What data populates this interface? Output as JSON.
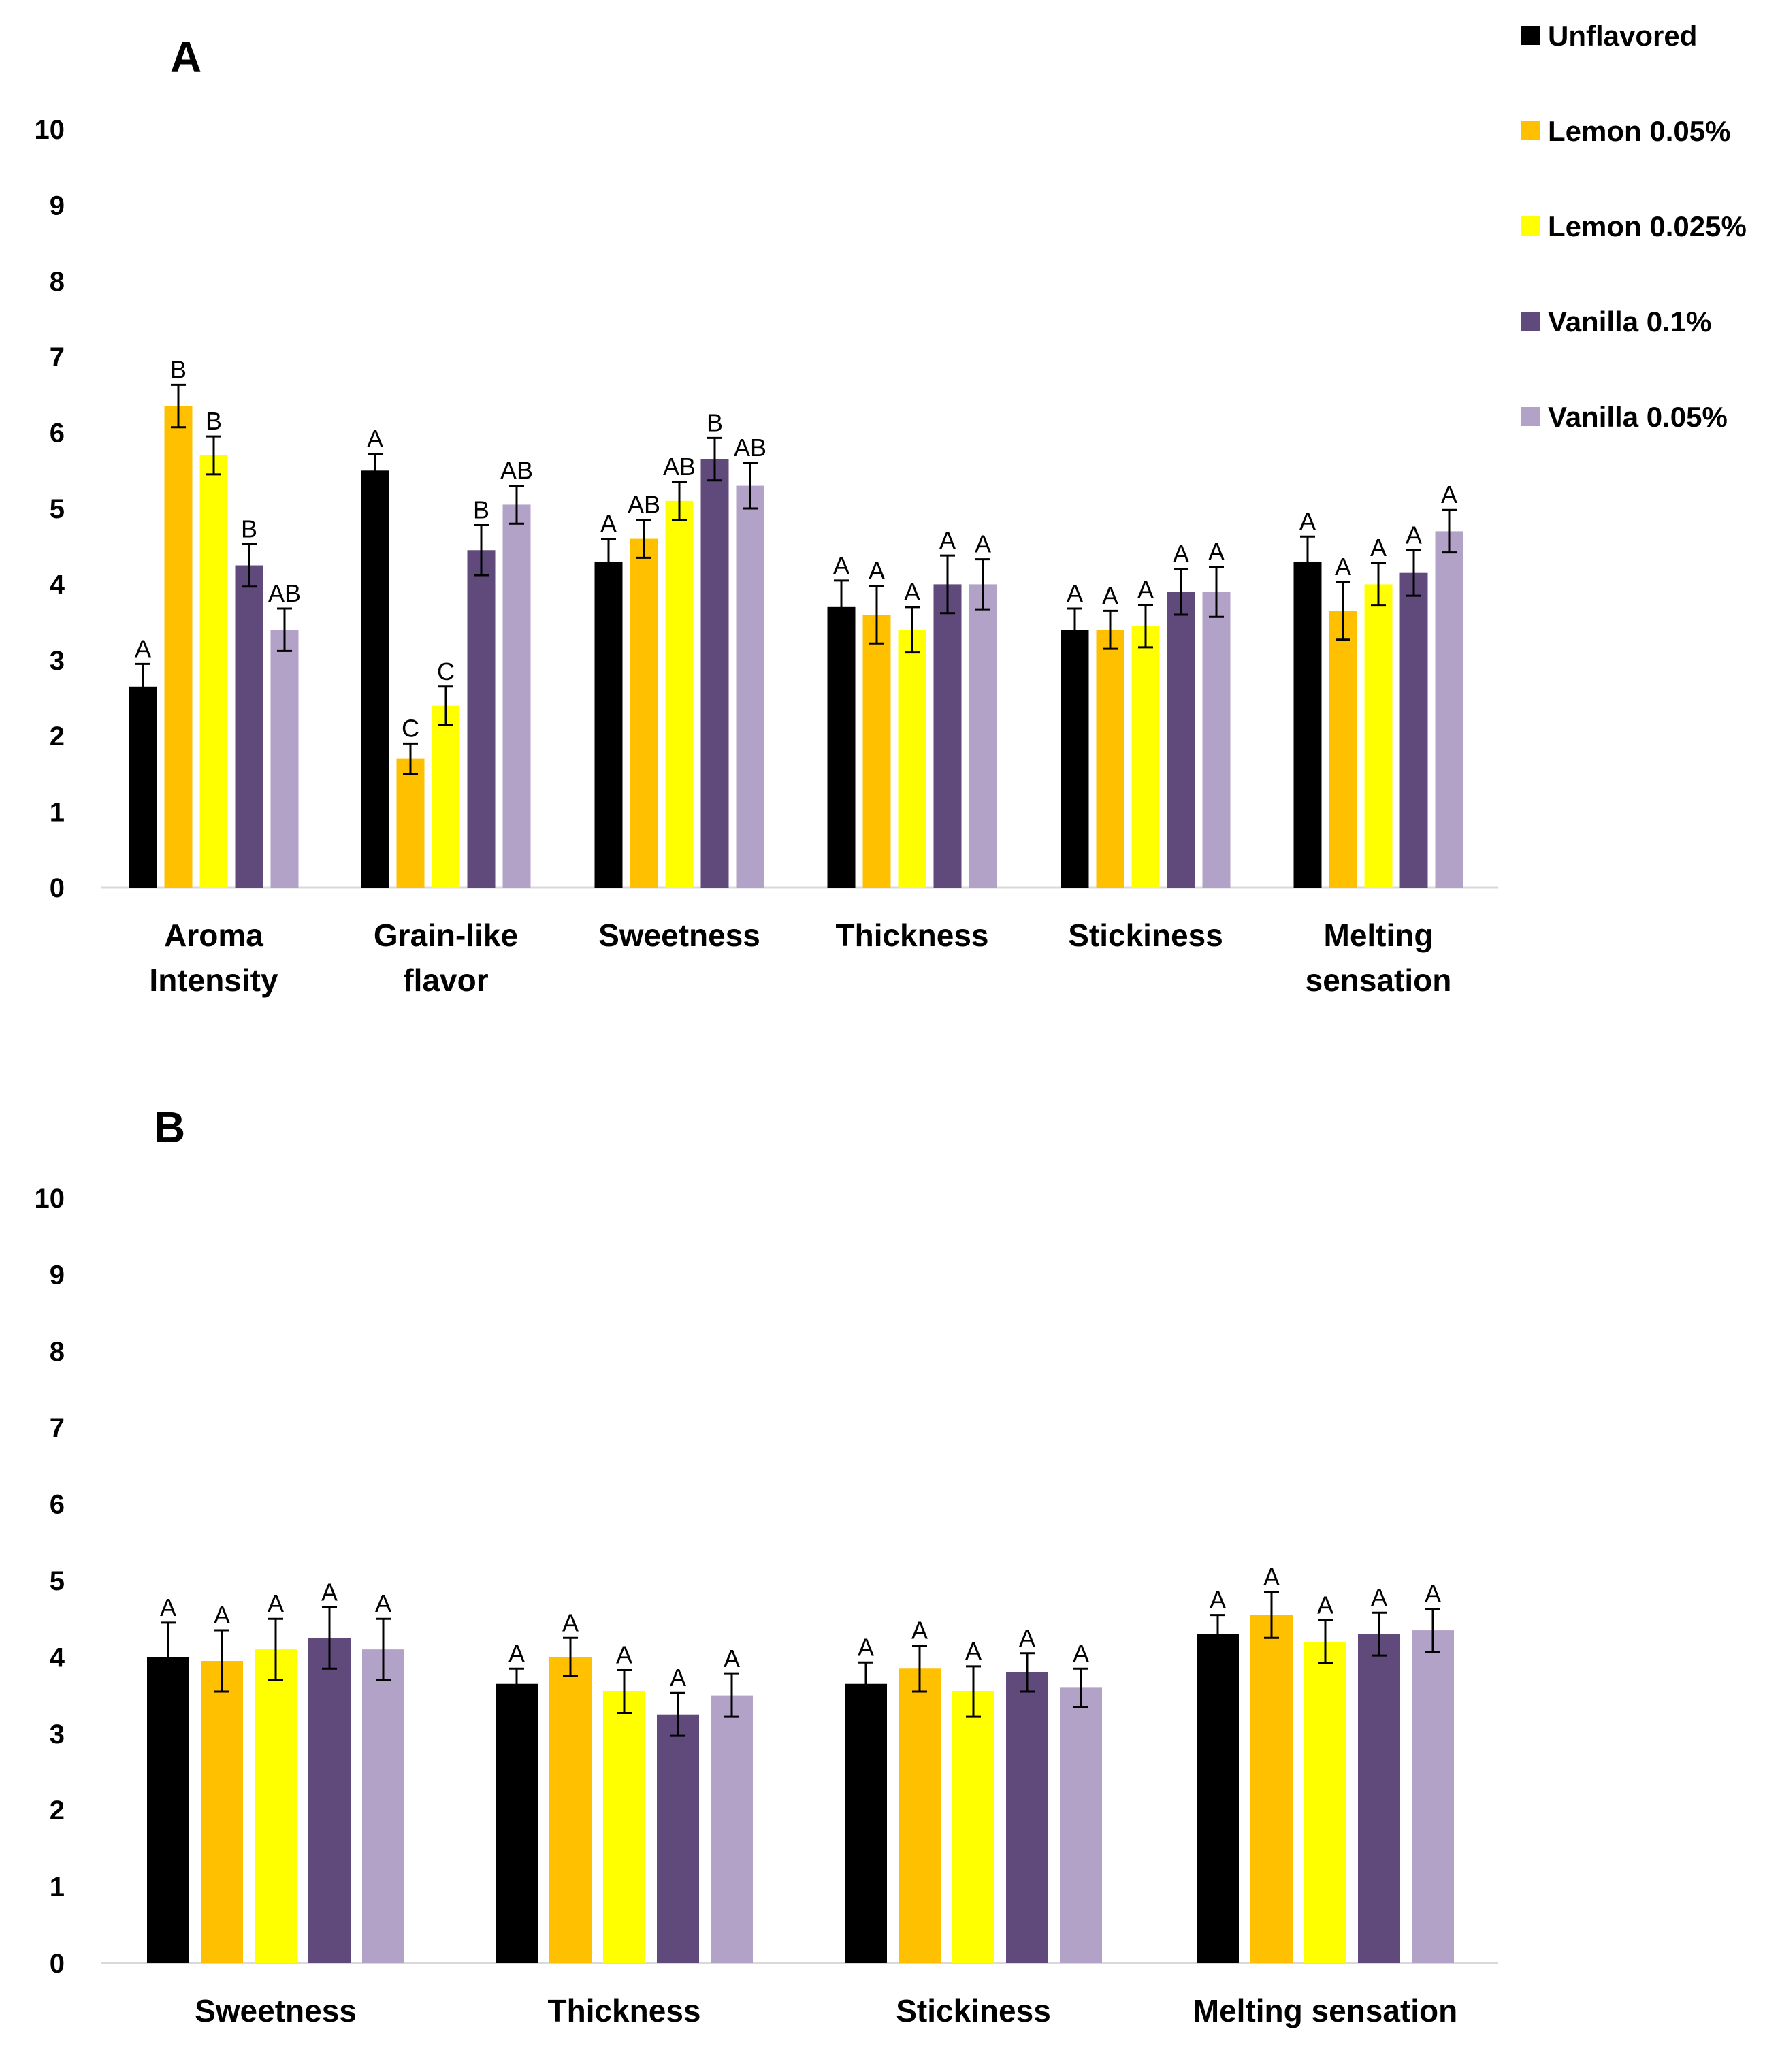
{
  "legend": [
    {
      "name": "Unflavored",
      "color": "#000000"
    },
    {
      "name": "Lemon 0.05%",
      "color": "#FFC000"
    },
    {
      "name": "Lemon 0.025%",
      "color": "#FFFF00"
    },
    {
      "name": "Vanilla 0.1%",
      "color": "#604A7B"
    },
    {
      "name": "Vanilla 0.05%",
      "color": "#B3A2C7"
    }
  ],
  "chart_data": [
    {
      "panel": "A",
      "type": "bar",
      "ylim": [
        0,
        10
      ],
      "yticks": [
        "0",
        "1",
        "2",
        "3",
        "4",
        "5",
        "6",
        "7",
        "8",
        "9",
        "10"
      ],
      "categories": [
        [
          "Aroma",
          "Intensity"
        ],
        [
          "Grain-like",
          "flavor"
        ],
        [
          "Sweetness"
        ],
        [
          "Thickness"
        ],
        [
          "Stickiness"
        ],
        [
          "Melting",
          "sensation"
        ]
      ],
      "series": [
        {
          "name": "Unflavored",
          "color": "#000000",
          "values": [
            2.65,
            5.5,
            4.3,
            3.7,
            3.4,
            4.3
          ],
          "errors": [
            0.3,
            0.22,
            0.3,
            0.35,
            0.28,
            0.33
          ],
          "labels": [
            "A",
            "A",
            "A",
            "A",
            "A",
            "A"
          ]
        },
        {
          "name": "Lemon 0.05%",
          "color": "#FFC000",
          "values": [
            6.35,
            1.7,
            4.6,
            3.6,
            3.4,
            3.65
          ],
          "errors": [
            0.28,
            0.2,
            0.25,
            0.38,
            0.25,
            0.38
          ],
          "labels": [
            "B",
            "C",
            "AB",
            "A",
            "A",
            "A"
          ]
        },
        {
          "name": "Lemon 0.025%",
          "color": "#FFFF00",
          "values": [
            5.7,
            2.4,
            5.1,
            3.4,
            3.45,
            4.0
          ],
          "errors": [
            0.25,
            0.25,
            0.25,
            0.3,
            0.28,
            0.28
          ],
          "labels": [
            "B",
            "C",
            "AB",
            "A",
            "A",
            "A"
          ]
        },
        {
          "name": "Vanilla 0.1%",
          "color": "#604A7B",
          "values": [
            4.25,
            4.45,
            5.65,
            4.0,
            3.9,
            4.15
          ],
          "errors": [
            0.28,
            0.33,
            0.28,
            0.38,
            0.3,
            0.3
          ],
          "labels": [
            "B",
            "B",
            "B",
            "A",
            "A",
            "A"
          ]
        },
        {
          "name": "Vanilla 0.05%",
          "color": "#B3A2C7",
          "values": [
            3.4,
            5.05,
            5.3,
            4.0,
            3.9,
            4.7
          ],
          "errors": [
            0.28,
            0.25,
            0.3,
            0.33,
            0.33,
            0.28
          ],
          "labels": [
            "AB",
            "AB",
            "AB",
            "A",
            "A",
            "A"
          ]
        }
      ]
    },
    {
      "panel": "B",
      "type": "bar",
      "ylim": [
        0,
        10
      ],
      "yticks": [
        "0",
        "1",
        "2",
        "3",
        "4",
        "5",
        "6",
        "7",
        "8",
        "9",
        "10"
      ],
      "categories": [
        [
          "Sweetness"
        ],
        [
          "Thickness"
        ],
        [
          "Stickiness"
        ],
        [
          "Melting sensation"
        ]
      ],
      "series": [
        {
          "name": "Unflavored",
          "color": "#000000",
          "values": [
            4.0,
            3.65,
            3.65,
            4.3
          ],
          "errors": [
            0.45,
            0.2,
            0.28,
            0.25
          ],
          "labels": [
            "A",
            "A",
            "A",
            "A"
          ]
        },
        {
          "name": "Lemon 0.05%",
          "color": "#FFC000",
          "values": [
            3.95,
            4.0,
            3.85,
            4.55
          ],
          "errors": [
            0.4,
            0.25,
            0.3,
            0.3
          ],
          "labels": [
            "A",
            "A",
            "A",
            "A"
          ]
        },
        {
          "name": "Lemon 0.025%",
          "color": "#FFFF00",
          "values": [
            4.1,
            3.55,
            3.55,
            4.2
          ],
          "errors": [
            0.4,
            0.28,
            0.33,
            0.28
          ],
          "labels": [
            "A",
            "A",
            "A",
            "A"
          ]
        },
        {
          "name": "Vanilla 0.1%",
          "color": "#604A7B",
          "values": [
            4.25,
            3.25,
            3.8,
            4.3
          ],
          "errors": [
            0.4,
            0.28,
            0.25,
            0.28
          ],
          "labels": [
            "A",
            "A",
            "A",
            "A"
          ]
        },
        {
          "name": "Vanilla 0.05%",
          "color": "#B3A2C7",
          "values": [
            4.1,
            3.5,
            3.6,
            4.35
          ],
          "errors": [
            0.4,
            0.28,
            0.25,
            0.28
          ],
          "labels": [
            "A",
            "A",
            "A",
            "A"
          ]
        }
      ]
    }
  ]
}
